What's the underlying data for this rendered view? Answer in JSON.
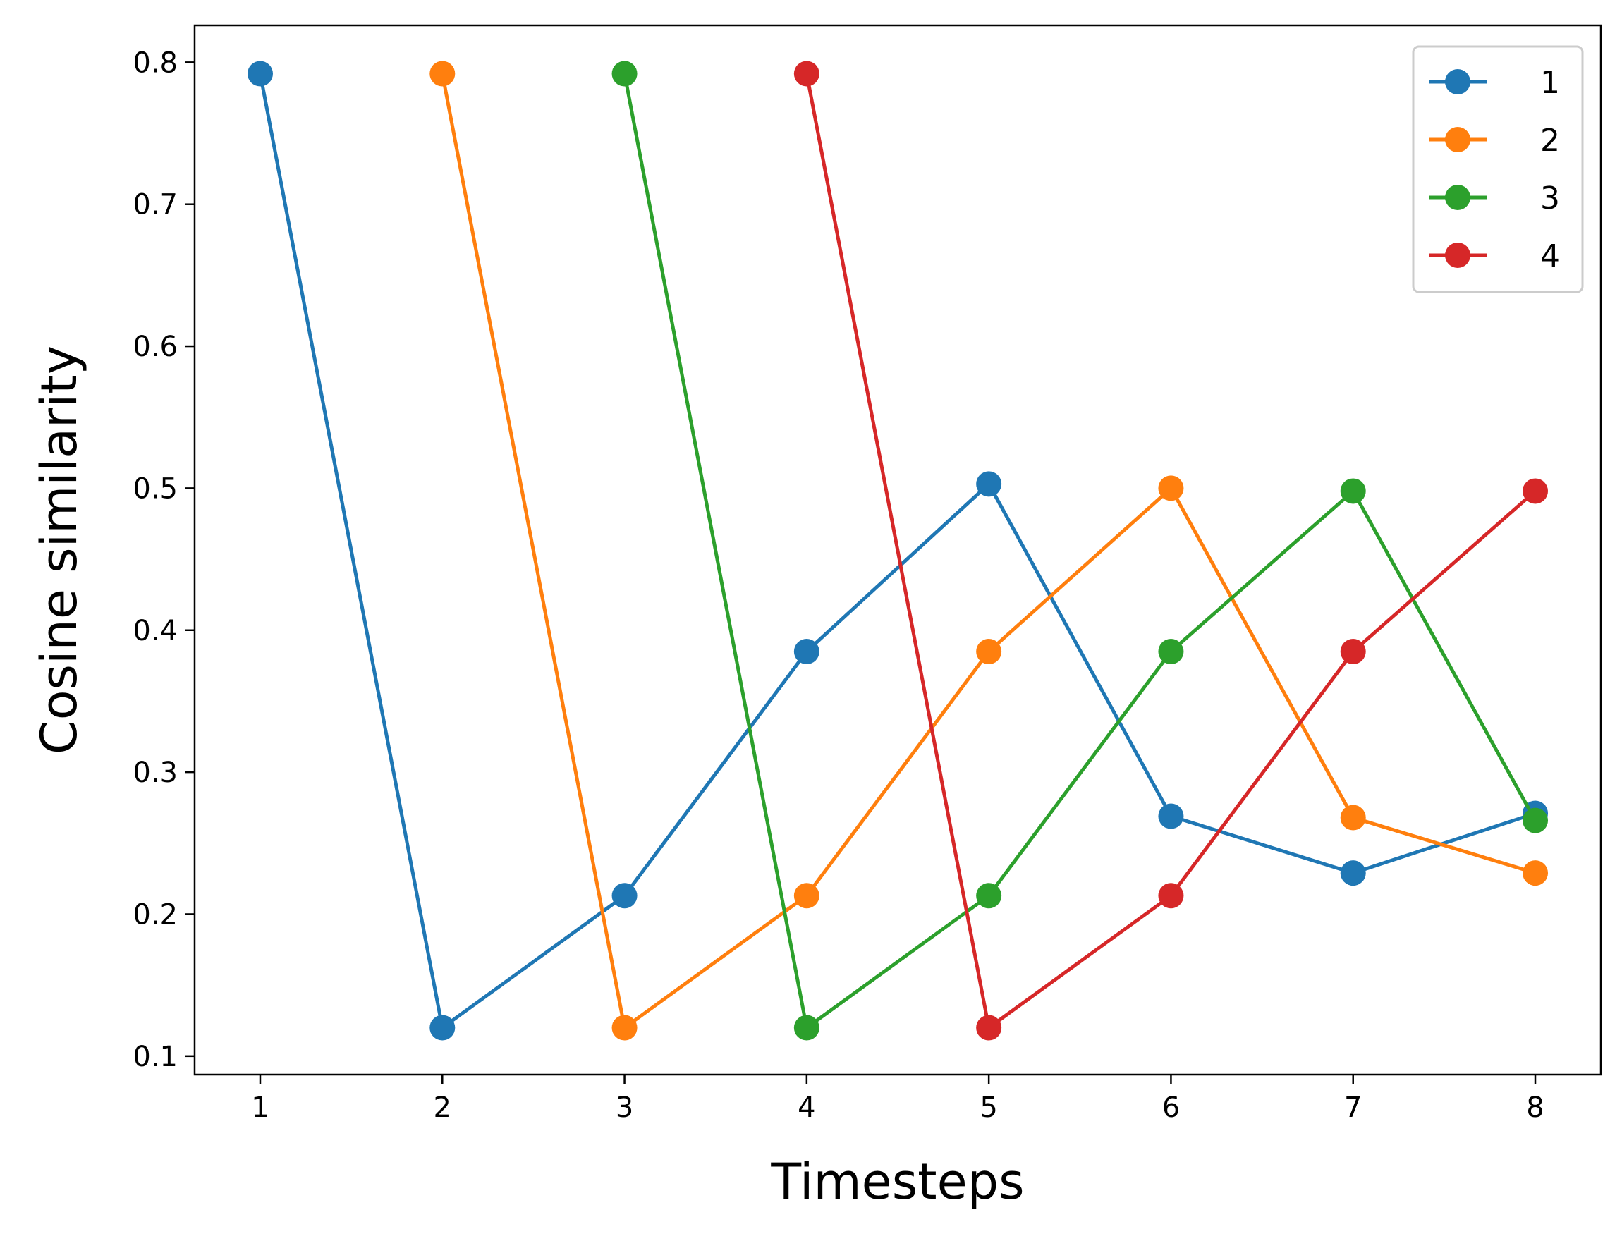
{
  "chart_data": {
    "type": "line",
    "title": "",
    "xlabel": "Timesteps",
    "ylabel": "Cosine similarity",
    "x": [
      1,
      2,
      3,
      4,
      5,
      6,
      7,
      8
    ],
    "xticks": [
      1,
      2,
      3,
      4,
      5,
      6,
      7,
      8
    ],
    "xlim": [
      0.64,
      8.36
    ],
    "yticks": [
      0.1,
      0.2,
      0.3,
      0.4,
      0.5,
      0.6,
      0.7,
      0.8
    ],
    "ytick_labels": [
      "0.1",
      "0.2",
      "0.3",
      "0.4",
      "0.5",
      "0.6",
      "0.7",
      "0.8"
    ],
    "ylim": [
      0.087,
      0.826
    ],
    "grid": false,
    "legend": {
      "placement": "top-right"
    },
    "series": [
      {
        "name": "1",
        "color": "#1f77b4",
        "x": [
          1,
          2,
          3,
          4,
          5,
          6,
          7,
          8
        ],
        "values": [
          0.792,
          0.12,
          0.213,
          0.385,
          0.503,
          0.269,
          0.229,
          0.271
        ]
      },
      {
        "name": "2",
        "color": "#ff7f0e",
        "x": [
          2,
          3,
          4,
          5,
          6,
          7,
          8
        ],
        "values": [
          0.792,
          0.12,
          0.213,
          0.385,
          0.5,
          0.268,
          0.229
        ]
      },
      {
        "name": "3",
        "color": "#2ca02c",
        "x": [
          3,
          4,
          5,
          6,
          7,
          8
        ],
        "values": [
          0.792,
          0.12,
          0.213,
          0.385,
          0.498,
          0.266
        ]
      },
      {
        "name": "4",
        "color": "#d62728",
        "x": [
          4,
          5,
          6,
          7,
          8
        ],
        "values": [
          0.792,
          0.12,
          0.213,
          0.385,
          0.498
        ]
      }
    ]
  }
}
